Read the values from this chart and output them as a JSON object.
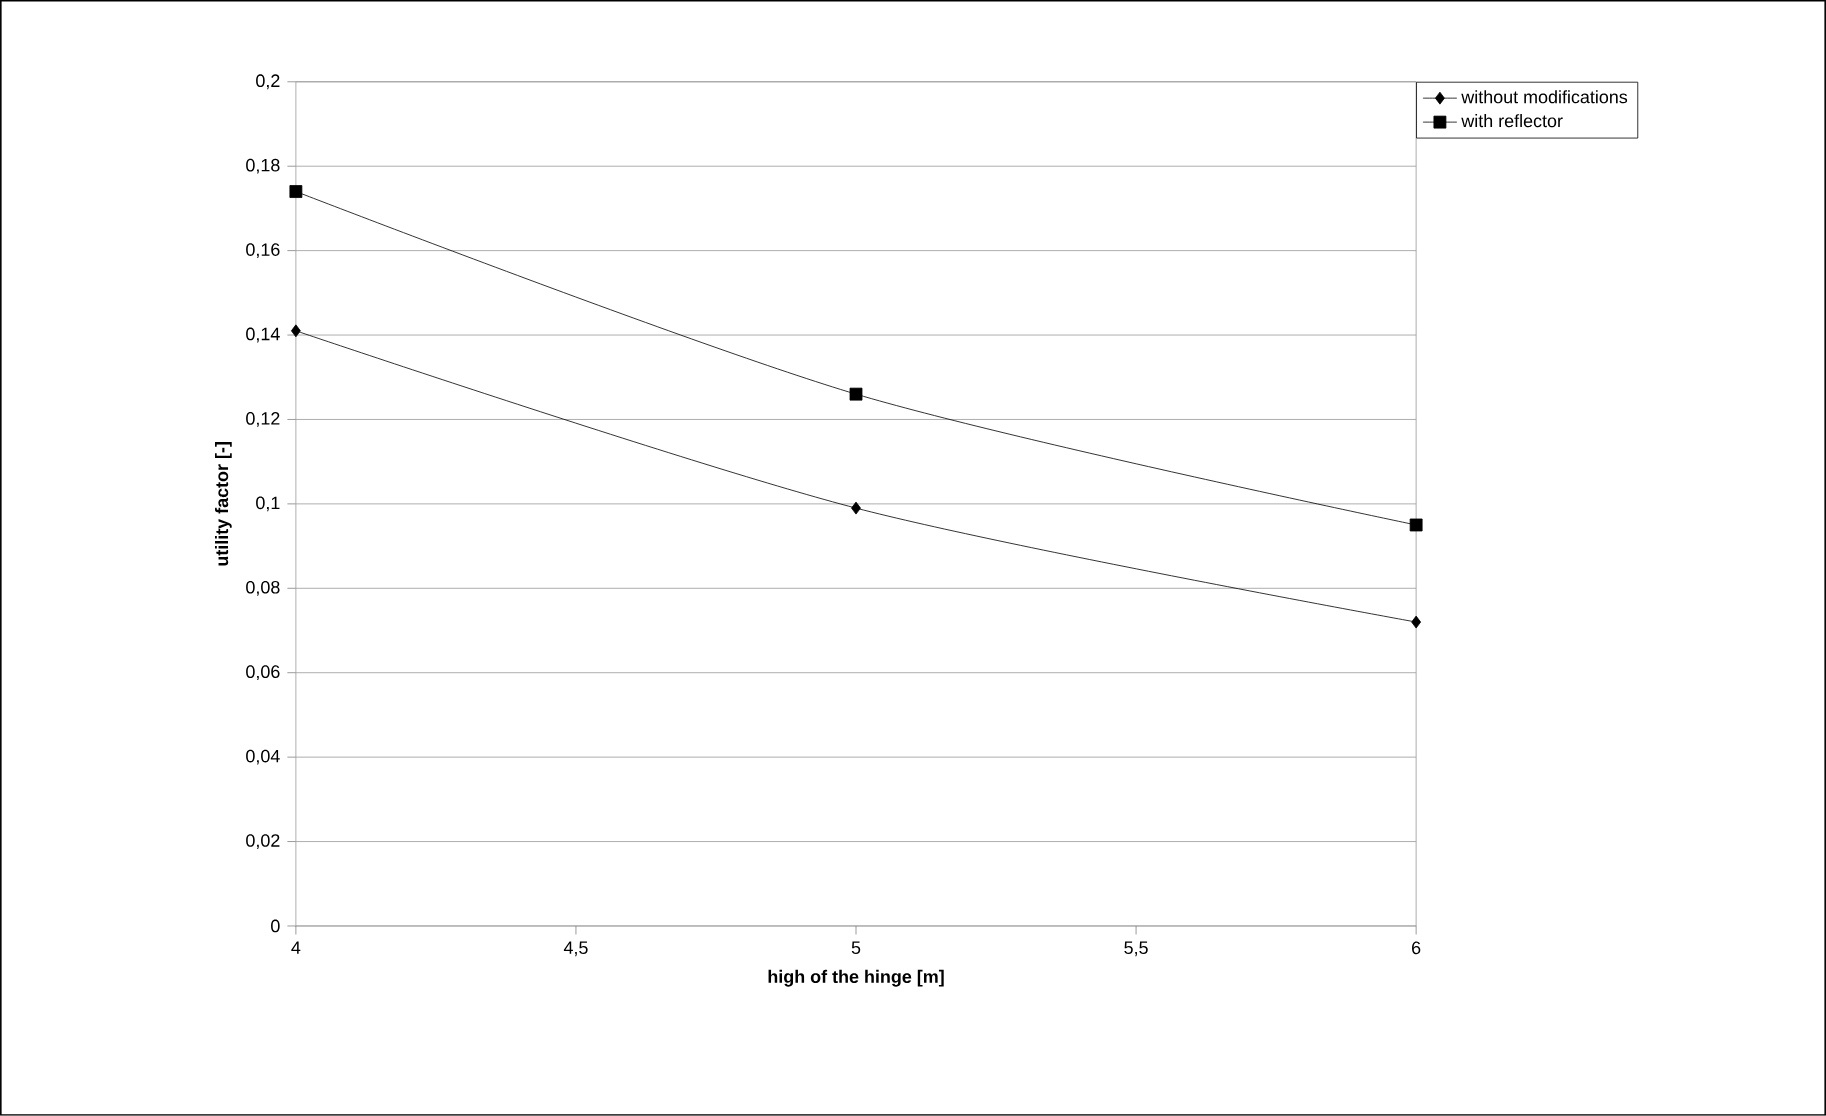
{
  "chart_data": {
    "type": "line",
    "xlabel": "high of the hinge [m]",
    "ylabel": "utility factor [-]",
    "xlim": [
      4,
      6
    ],
    "xticks": [
      4,
      {
        "value": 4.5,
        "label": "4,5"
      },
      5,
      {
        "value": 5.5,
        "label": "5,5"
      },
      6
    ],
    "ylim": [
      0,
      0.2
    ],
    "yticks": [
      0,
      {
        "value": 0.02,
        "label": "0,02"
      },
      {
        "value": 0.04,
        "label": "0,04"
      },
      {
        "value": 0.06,
        "label": "0,06"
      },
      {
        "value": 0.08,
        "label": "0,08"
      },
      {
        "value": 0.1,
        "label": "0,1"
      },
      {
        "value": 0.12,
        "label": "0,12"
      },
      {
        "value": 0.14,
        "label": "0,14"
      },
      {
        "value": 0.16,
        "label": "0,16"
      },
      {
        "value": 0.18,
        "label": "0,18"
      },
      {
        "value": 0.2,
        "label": "0,2"
      }
    ],
    "grid": "y",
    "legend": "top right",
    "line_style": "solid",
    "x": [
      4,
      5,
      6
    ],
    "series": [
      {
        "name": "without modifications",
        "color": "#000000",
        "marker": "diamond",
        "values": [
          0.141,
          0.099,
          0.072
        ]
      },
      {
        "name": "with reflector",
        "color": "#000000",
        "marker": "square",
        "values": [
          0.174,
          0.126,
          0.095
        ]
      }
    ]
  }
}
